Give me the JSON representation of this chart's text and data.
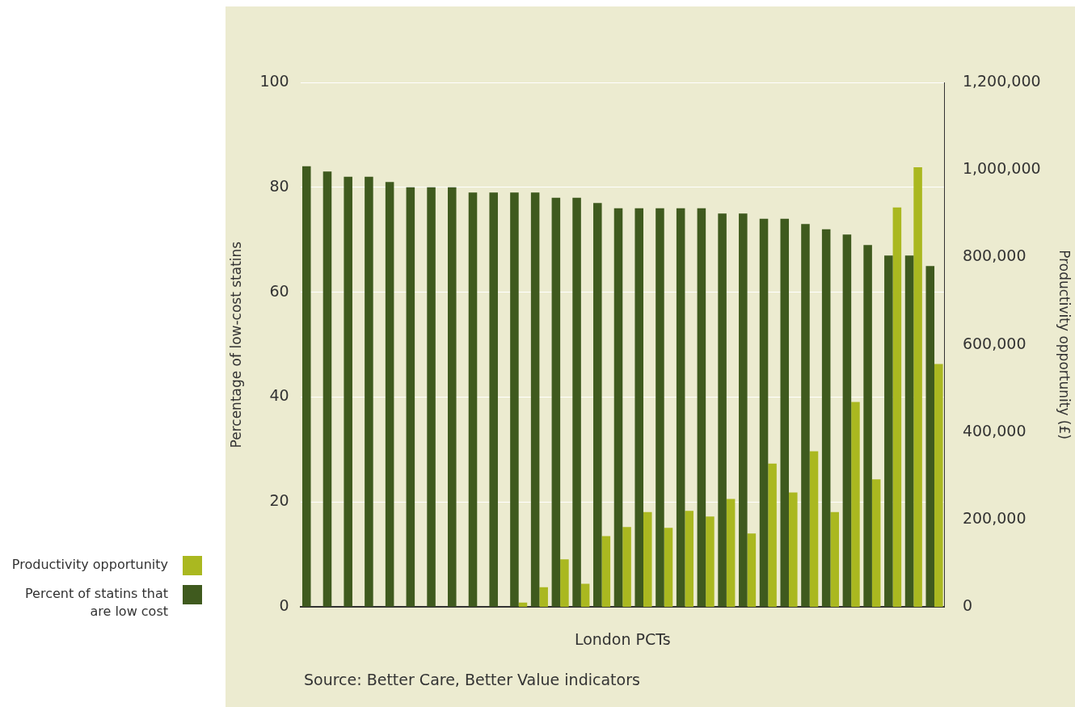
{
  "chart_data": {
    "type": "bar",
    "xlabel": "London PCTs",
    "ylabel": "Percentage of low-cost statins",
    "y2label": "Productivity opportunity (£)",
    "categories": [
      null,
      null,
      null,
      null,
      null,
      null,
      null,
      null,
      null,
      null,
      null,
      null,
      null,
      null,
      null,
      null,
      null,
      null,
      null,
      null,
      null,
      null,
      null,
      null,
      null,
      null,
      null,
      null,
      null,
      null,
      null
    ],
    "series": [
      {
        "name": "Percent of statins that are low cost",
        "color": "#3f5a1e",
        "values": [
          84,
          83,
          82,
          82,
          81,
          80,
          80,
          80,
          79,
          79,
          79,
          79,
          78,
          78,
          77,
          76,
          76,
          76,
          76,
          76,
          75,
          75,
          74,
          74,
          73,
          72,
          71,
          69,
          67,
          67,
          65
        ]
      },
      {
        "name": "Productivity opportunity",
        "color": "#aab820",
        "axis": "y2",
        "values": [
          null,
          null,
          null,
          null,
          null,
          null,
          null,
          null,
          null,
          null,
          10000,
          45000,
          109000,
          53000,
          162000,
          183000,
          217000,
          181000,
          220000,
          207000,
          247000,
          168000,
          328000,
          262000,
          356000,
          217000,
          469000,
          292000,
          914000,
          1006000,
          556000
        ]
      }
    ],
    "ylim": [
      0,
      100
    ],
    "yticks": [
      0,
      20,
      40,
      60,
      80,
      100
    ],
    "y2lim": [
      0,
      1200000
    ],
    "y2ticks": [
      {
        "value": 0,
        "label": "0"
      },
      {
        "value": 200000,
        "label": "200,000"
      },
      {
        "value": 400000,
        "label": "400,000"
      },
      {
        "value": 600000,
        "label": "600,000"
      },
      {
        "value": 800000,
        "label": "800,000"
      },
      {
        "value": 1000000,
        "label": "1,000,000"
      },
      {
        "value": 1200000,
        "label": "1,200,000"
      }
    ],
    "grid": "y",
    "legend": "bottom left",
    "annotations": [
      "Source: Better Care, Better Value indicators"
    ]
  }
}
